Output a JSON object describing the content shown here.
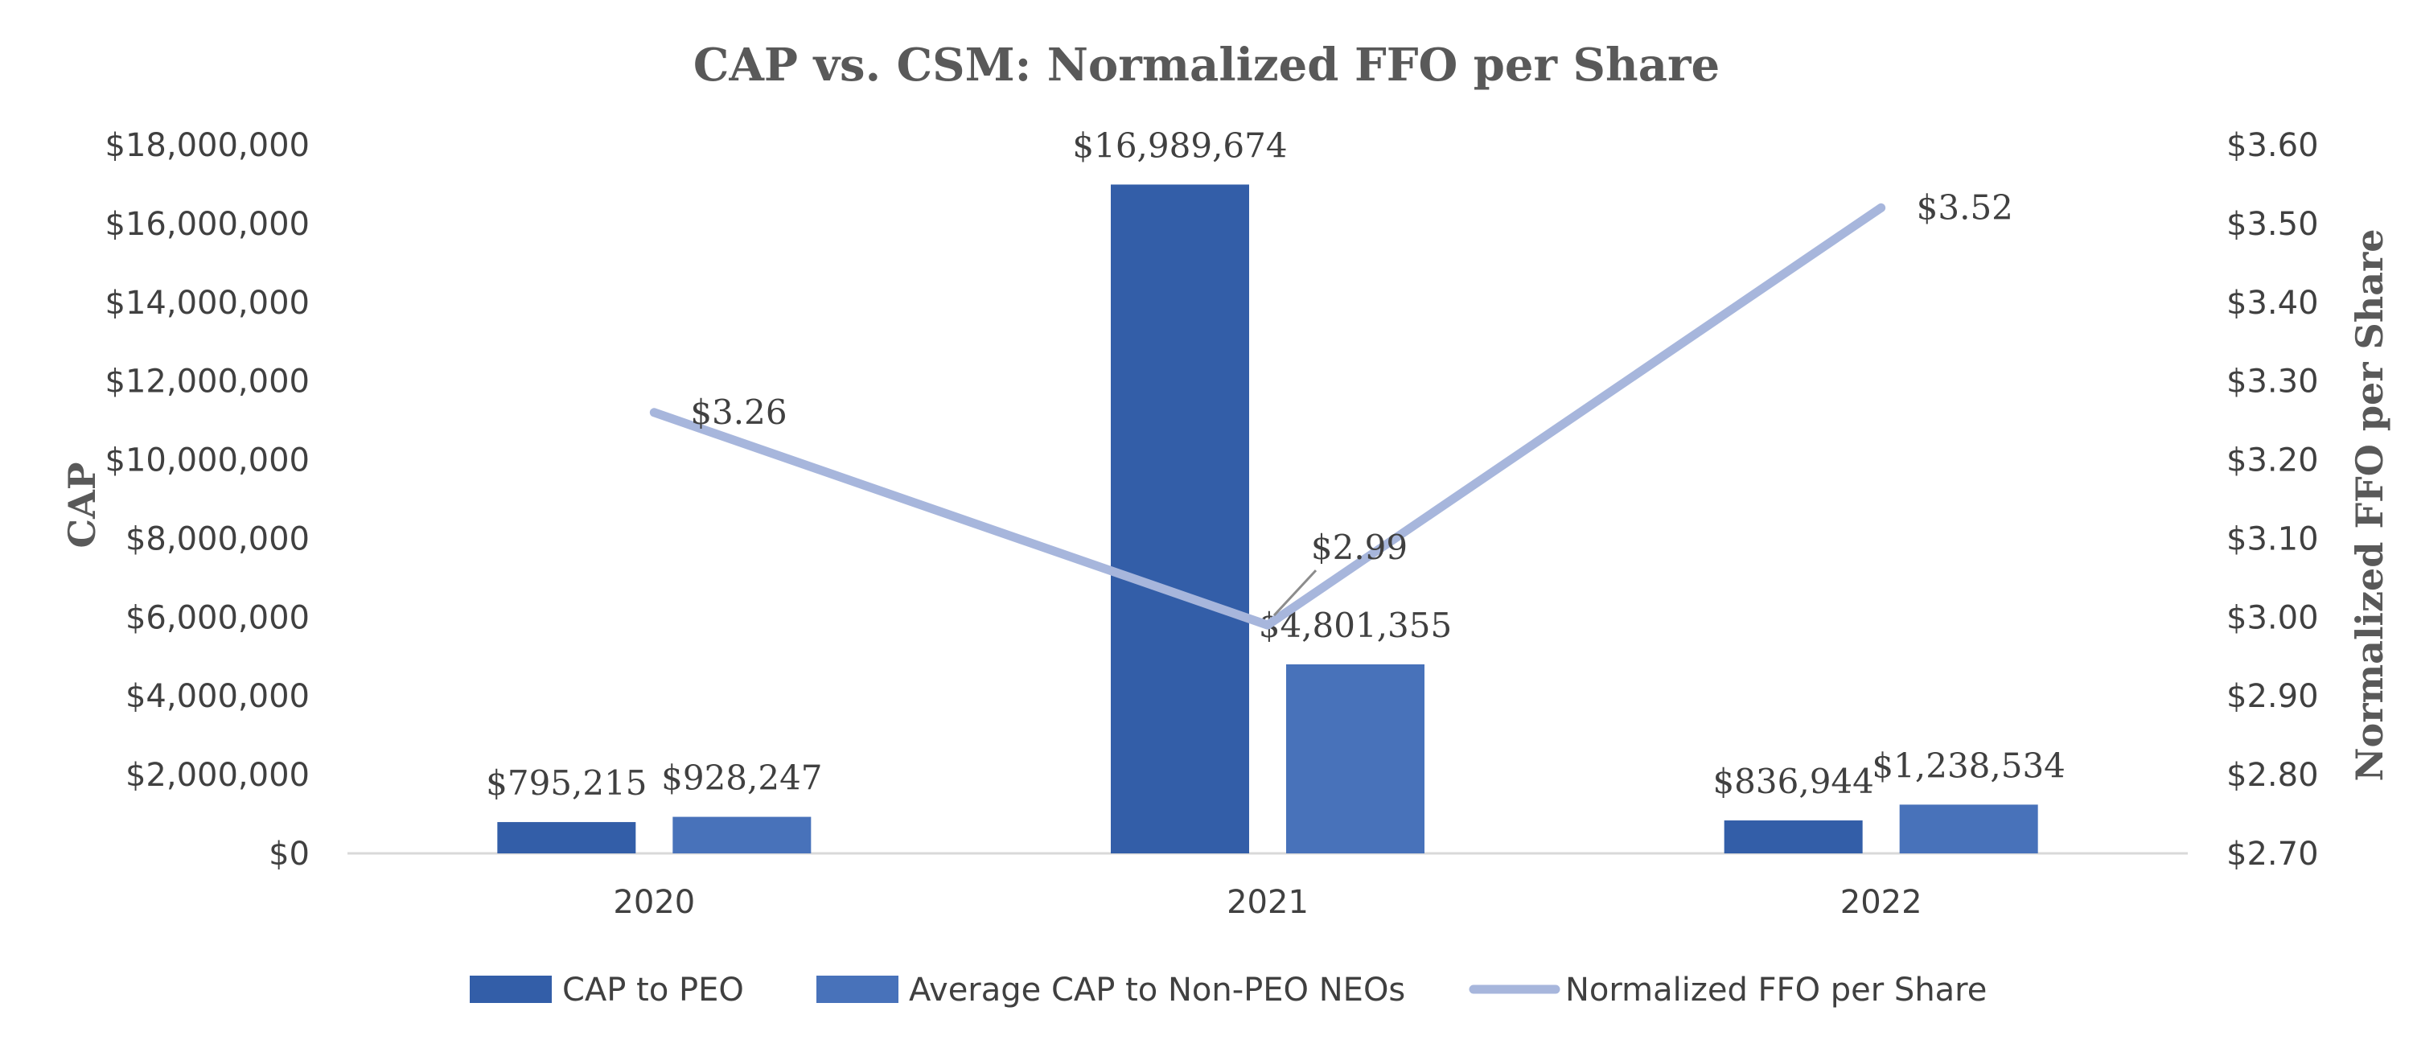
{
  "chart_data": {
    "type": "bar",
    "title": "CAP vs. CSM: Normalized FFO per Share",
    "categories": [
      "2020",
      "2021",
      "2022"
    ],
    "ylabel": "CAP",
    "y2label": "Normalized FFO per Share",
    "ylim": [
      0,
      18000000
    ],
    "y2lim": [
      2.7,
      3.6
    ],
    "yticks": [
      "$0",
      "$2,000,000",
      "$4,000,000",
      "$6,000,000",
      "$8,000,000",
      "$10,000,000",
      "$12,000,000",
      "$14,000,000",
      "$16,000,000",
      "$18,000,000"
    ],
    "y2ticks": [
      "$2.70",
      "$2.80",
      "$2.90",
      "$3.00",
      "$3.10",
      "$3.20",
      "$3.30",
      "$3.40",
      "$3.50",
      "$3.60"
    ],
    "series": [
      {
        "name": "CAP to PEO",
        "type": "bar",
        "axis": "left",
        "color": "#335EA8",
        "values": [
          795215,
          16989674,
          836944
        ],
        "labels": [
          "$795,215",
          "$16,989,674",
          "$836,944"
        ]
      },
      {
        "name": "Average CAP to Non-PEO NEOs",
        "type": "bar",
        "axis": "left",
        "color": "#4872BA",
        "values": [
          928247,
          4801355,
          1238534
        ],
        "labels": [
          "$928,247",
          "$4,801,355",
          "$1,238,534"
        ]
      },
      {
        "name": "Normalized FFO per Share",
        "type": "line",
        "axis": "right",
        "color": "#A7B6DC",
        "values": [
          3.26,
          2.99,
          3.52
        ],
        "labels": [
          "$3.26",
          "$2.99",
          "$3.52"
        ]
      }
    ],
    "legend": "bottom",
    "grid": false
  }
}
